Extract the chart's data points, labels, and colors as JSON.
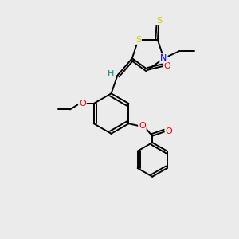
{
  "background_color": "#ebebeb",
  "bond_color": "#000000",
  "atom_colors": {
    "S": "#cccc00",
    "N": "#0000ff",
    "O": "#ff0000",
    "C": "#000000",
    "H": "#008b8b"
  },
  "lw": 1.4
}
